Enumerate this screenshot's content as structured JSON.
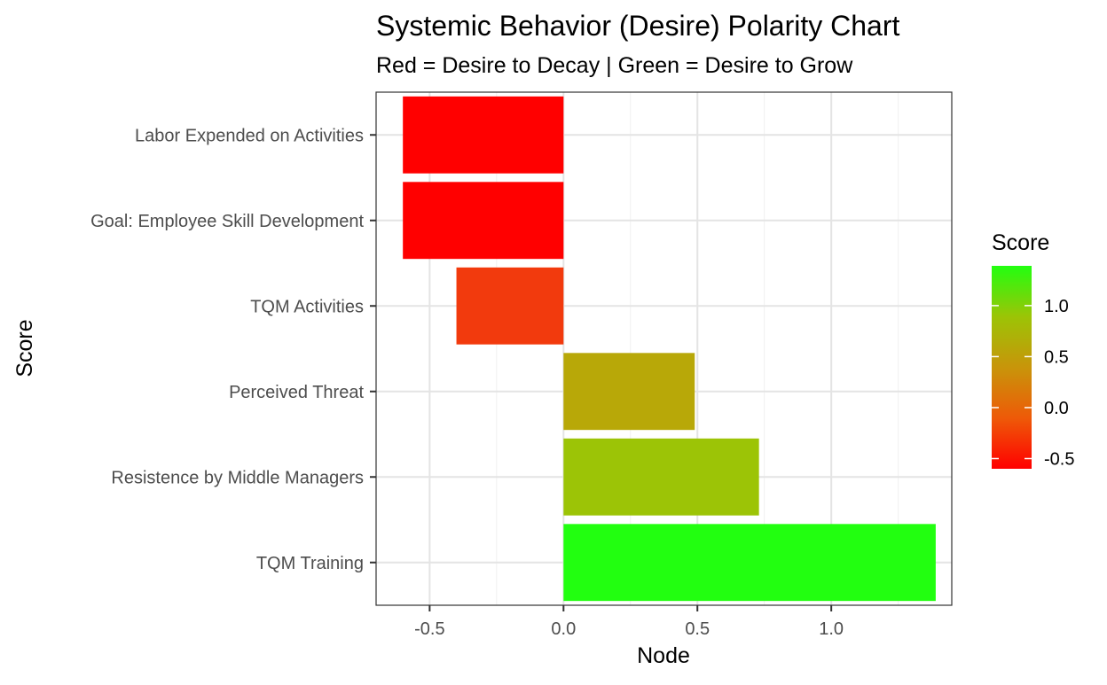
{
  "chart_data": {
    "type": "bar",
    "orientation": "horizontal",
    "title": "Systemic Behavior (Desire) Polarity Chart",
    "subtitle": "Red = Desire to Decay | Green = Desire to Grow",
    "xlabel": "Node",
    "ylabel": "Score",
    "categories": [
      "Labor Expended on Activities",
      "Goal: Employee Skill Development",
      "TQM Activities",
      "Perceived Threat",
      "Resistence by Middle Managers",
      "TQM Training"
    ],
    "values": [
      -0.6,
      -0.6,
      -0.4,
      0.49,
      0.73,
      1.39
    ],
    "colors": [
      "#ff0000",
      "#ff0000",
      "#f23a0d",
      "#b8a808",
      "#9cc406",
      "#22ff10"
    ],
    "xlim": [
      -0.7,
      1.45
    ],
    "xticks": [
      -0.5,
      0.0,
      0.5,
      1.0
    ],
    "xtick_labels": [
      "-0.5",
      "0.0",
      "0.5",
      "1.0"
    ],
    "grid": true,
    "legend": {
      "title": "Score",
      "position": "right",
      "range": [
        -0.6,
        1.39
      ],
      "ticks": [
        1.0,
        0.5,
        0.0,
        -0.5
      ],
      "tick_labels": [
        "1.0",
        "0.5",
        "0.0",
        "-0.5"
      ],
      "colors": [
        "#22ff10",
        "#9cc406",
        "#c8950a",
        "#ee5a08",
        "#ff0000"
      ]
    }
  }
}
